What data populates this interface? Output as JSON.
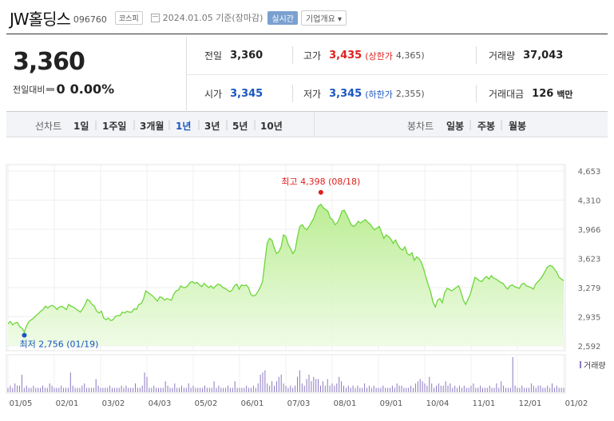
{
  "header": {
    "name": "JW홀딩스",
    "code": "096760",
    "market": "코스피",
    "date": "2024.01.05 기준(장마감)",
    "realtime_label": "실시간",
    "company_label": "기업개요"
  },
  "quote": {
    "price": "3,360",
    "change_label": "전일대비",
    "change": "0",
    "change_pct": "0.00%",
    "prev_label": "전일",
    "prev": "3,360",
    "high_label": "고가",
    "high": "3,435",
    "upper_label": "(상한가",
    "upper": "4,365)",
    "volume_label": "거래량",
    "volume": "37,043",
    "open_label": "시가",
    "open": "3,345",
    "low_label": "저가",
    "low": "3,345",
    "lower_label": "(하한가",
    "lower": "2,355)",
    "amount_label": "거래대금",
    "amount": "126",
    "amount_unit": "백만"
  },
  "controls": {
    "line_label": "선차트",
    "line_options": [
      "1일",
      "1주일",
      "3개월",
      "1년",
      "3년",
      "5년",
      "10년"
    ],
    "line_selected": "1년",
    "candle_label": "봉차트",
    "candle_options": [
      "일봉",
      "주봉",
      "월봉"
    ]
  },
  "chart_data": {
    "type": "area",
    "x_ticks": [
      "01/05",
      "02/01",
      "03/02",
      "04/03",
      "05/02",
      "06/01",
      "07/03",
      "08/01",
      "09/01",
      "10/04",
      "11/01",
      "12/01",
      "01/02"
    ],
    "y_ticks": [
      "4,653",
      "4,310",
      "3,966",
      "3,623",
      "3,279",
      "2,935",
      "2,592"
    ],
    "ylim": [
      2592,
      4653
    ],
    "max_label": "최고 4,398 (08/18)",
    "min_label": "최저 2,756 (01/19)",
    "volume_label": "거래량",
    "colors": {
      "line": "#6cd63a",
      "max": "#e0201c",
      "min": "#1a56c2",
      "volume": "#8c79c2"
    },
    "series": [
      {
        "values": [
          2850,
          2880,
          2840,
          2860,
          2870,
          2820,
          2800,
          2756,
          2830,
          2880,
          2900,
          2920,
          2950,
          2970,
          3000,
          3020,
          3060,
          3040,
          3060,
          3070,
          3050,
          3020,
          3050,
          3060,
          3040,
          3020,
          3080,
          3060,
          3050,
          3030,
          3010,
          2990,
          3030,
          3080,
          3140,
          3120,
          3080,
          3060,
          3000,
          2980,
          3000,
          2920,
          2900,
          2920,
          2890,
          2900,
          2940,
          2950,
          2950,
          2990,
          2980,
          3000,
          2990,
          2990,
          3030,
          3020,
          3080,
          3090,
          3140,
          3240,
          3220,
          3200,
          3180,
          3150,
          3120,
          3170,
          3160,
          3130,
          3150,
          3140,
          3130,
          3200,
          3240,
          3250,
          3300,
          3280,
          3280,
          3300,
          3340,
          3350,
          3330,
          3340,
          3310,
          3290,
          3330,
          3300,
          3280,
          3300,
          3270,
          3300,
          3320,
          3310,
          3280,
          3270,
          3250,
          3230,
          3250,
          3300,
          3320,
          3260,
          3310,
          3300,
          3310,
          3280,
          3200,
          3180,
          3190,
          3230,
          3280,
          3350,
          3580,
          3800,
          3860,
          3840,
          3750,
          3680,
          3700,
          3760,
          3900,
          3880,
          3790,
          3740,
          3680,
          3720,
          3880,
          4000,
          4020,
          3980,
          3960,
          4000,
          4050,
          4100,
          4180,
          4240,
          4260,
          4220,
          4200,
          4180,
          4100,
          4080,
          4020,
          4040,
          4100,
          4180,
          4190,
          4140,
          4080,
          4020,
          4000,
          4020,
          4060,
          4040,
          4060,
          4080,
          4050,
          4030,
          3990,
          3960,
          3980,
          4000,
          3930,
          3860,
          3900,
          3880,
          3850,
          3800,
          3840,
          3780,
          3740,
          3720,
          3760,
          3680,
          3660,
          3690,
          3600,
          3640,
          3620,
          3580,
          3500,
          3400,
          3310,
          3230,
          3110,
          3050,
          3130,
          3150,
          3100,
          3220,
          3270,
          3260,
          3240,
          3260,
          3280,
          3300,
          3230,
          3130,
          3080,
          3140,
          3200,
          3300,
          3400,
          3380,
          3360,
          3350,
          3390,
          3410,
          3380,
          3420,
          3390,
          3380,
          3360,
          3340,
          3330,
          3290,
          3260,
          3300,
          3310,
          3290,
          3280,
          3270,
          3320,
          3330,
          3300,
          3290,
          3280,
          3260,
          3320,
          3350,
          3380,
          3420,
          3470,
          3520,
          3540,
          3530,
          3500,
          3460,
          3400,
          3380,
          3360
        ]
      }
    ],
    "volume": [
      2,
      3,
      2,
      4,
      3,
      3,
      8,
      2,
      3,
      2,
      2,
      3,
      2,
      2,
      2,
      3,
      2,
      2,
      4,
      3,
      2,
      2,
      2,
      3,
      2,
      2,
      2,
      9,
      3,
      2,
      2,
      2,
      3,
      4,
      2,
      2,
      2,
      2,
      6,
      3,
      2,
      2,
      2,
      2,
      3,
      2,
      2,
      2,
      2,
      3,
      2,
      3,
      2,
      2,
      2,
      4,
      2,
      2,
      3,
      9,
      7,
      2,
      2,
      3,
      2,
      2,
      2,
      2,
      5,
      3,
      2,
      2,
      4,
      2,
      2,
      3,
      2,
      2,
      4,
      2,
      3,
      2,
      2,
      2,
      2,
      3,
      2,
      2,
      2,
      5,
      2,
      3,
      2,
      2,
      2,
      3,
      2,
      2,
      5,
      2,
      2,
      2,
      2,
      3,
      2,
      2,
      3,
      2,
      4,
      8,
      9,
      10,
      4,
      3,
      5,
      3,
      5,
      7,
      8,
      4,
      3,
      2,
      3,
      2,
      3,
      7,
      10,
      4,
      3,
      6,
      8,
      5,
      7,
      6,
      6,
      3,
      5,
      3,
      6,
      3,
      4,
      3,
      4,
      7,
      5,
      3,
      2,
      3,
      2,
      3,
      2,
      3,
      2,
      2,
      4,
      2,
      3,
      2,
      3,
      2,
      2,
      2,
      3,
      2,
      2,
      2,
      3,
      2,
      4,
      3,
      3,
      2,
      2,
      2,
      3,
      2,
      4,
      5,
      6,
      5,
      4,
      3,
      7,
      4,
      2,
      3,
      4,
      3,
      3,
      5,
      3,
      4,
      2,
      3,
      2,
      3,
      2,
      3,
      2,
      2,
      3,
      4,
      2,
      2,
      3,
      2,
      2,
      2,
      3,
      2,
      2,
      4,
      2,
      5,
      3,
      2,
      2,
      2,
      16,
      3,
      2,
      2,
      3,
      2,
      2,
      2,
      4,
      3,
      2,
      3,
      3,
      2,
      2,
      3,
      2,
      4,
      2,
      3,
      2,
      2,
      2
    ]
  }
}
